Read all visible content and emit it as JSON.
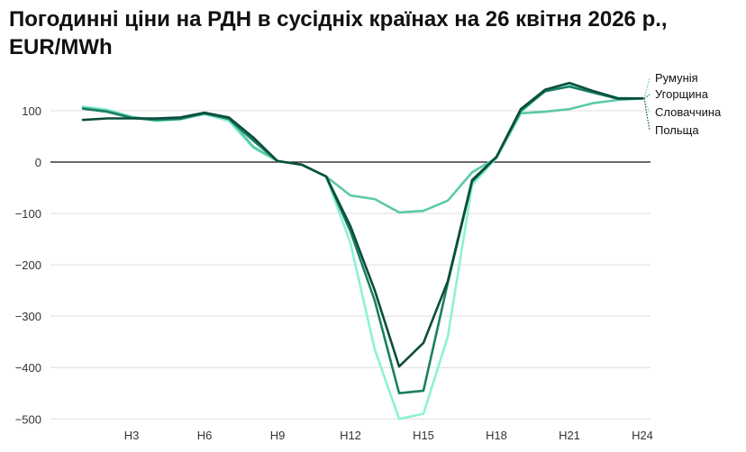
{
  "chart_data": {
    "type": "line",
    "title": "Погодинні ціни на РДН в сусідніх країнах на 26 квітня 2026 р., EUR/MWh",
    "xlabel": "",
    "ylabel": "",
    "ylim": [
      -500,
      150
    ],
    "yticks": [
      100,
      0,
      -100,
      -200,
      -300,
      -400,
      -500
    ],
    "ytick_labels": [
      "100",
      "0",
      "−100",
      "−200",
      "−300",
      "−400",
      "−500"
    ],
    "x": [
      1,
      2,
      3,
      4,
      5,
      6,
      7,
      8,
      9,
      10,
      11,
      12,
      13,
      14,
      15,
      16,
      17,
      18,
      19,
      20,
      21,
      22,
      23,
      24
    ],
    "xtick_values": [
      3,
      6,
      9,
      12,
      15,
      18,
      21,
      24
    ],
    "xtick_labels": [
      "H3",
      "H6",
      "H9",
      "H12",
      "H15",
      "H18",
      "H21",
      "H24"
    ],
    "grid": "horizontal",
    "legend": "right, direct labels",
    "series": [
      {
        "name": "Румунія",
        "color": "#5cc9a7",
        "values": [
          106,
          100,
          88,
          82,
          85,
          94,
          85,
          30,
          2,
          -5,
          -28,
          -65,
          -72,
          -98,
          -95,
          -75,
          -20,
          8,
          95,
          98,
          103,
          115,
          121,
          124
        ]
      },
      {
        "name": "Угорщина",
        "color": "#1a7f63",
        "values": [
          104,
          98,
          86,
          82,
          84,
          95,
          84,
          42,
          2,
          -5,
          -28,
          -135,
          -270,
          -450,
          -445,
          -235,
          -38,
          10,
          100,
          138,
          147,
          135,
          123,
          124
        ]
      },
      {
        "name": "Словаччина",
        "color": "#8df2d5",
        "values": [
          108,
          102,
          88,
          80,
          83,
          93,
          80,
          28,
          2,
          -5,
          -28,
          -158,
          -365,
          -500,
          -490,
          -340,
          -45,
          8,
          96,
          140,
          152,
          137,
          125,
          124
        ]
      },
      {
        "name": "Польща",
        "color": "#0b4d3c",
        "values": [
          82,
          85,
          85,
          85,
          87,
          96,
          87,
          48,
          2,
          -5,
          -28,
          -125,
          -250,
          -398,
          -352,
          -232,
          -35,
          10,
          103,
          141,
          154,
          138,
          124,
          124
        ]
      }
    ]
  }
}
